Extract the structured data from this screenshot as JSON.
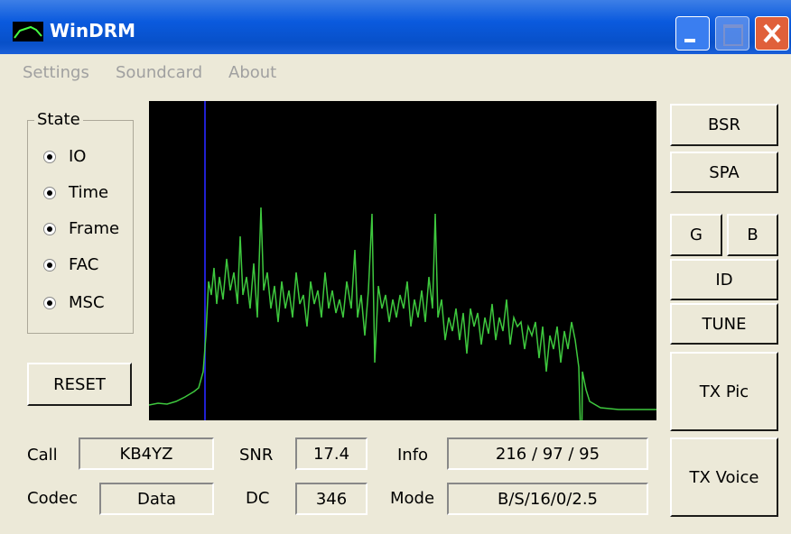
{
  "window": {
    "title": "WinDRM"
  },
  "menu": [
    "Settings",
    "Soundcard",
    "About"
  ],
  "state": {
    "label": "State",
    "options": [
      "IO",
      "Time",
      "Frame",
      "FAC",
      "MSC"
    ]
  },
  "buttons": {
    "reset": "RESET",
    "bsr": "BSR",
    "spa": "SPA",
    "g": "G",
    "b": "B",
    "id": "ID",
    "tune": "TUNE",
    "tx_pic": "TX Pic",
    "tx_voice": "TX Voice"
  },
  "fields": [
    {
      "label": "Call",
      "value": "KB4YZ"
    },
    {
      "label": "SNR",
      "value": "17.4"
    },
    {
      "label": "Info",
      "value": "216 / 97 / 95"
    },
    {
      "label": "Codec",
      "value": "Data"
    },
    {
      "label": "DC",
      "value": "346"
    },
    {
      "label": "Mode",
      "value": "B/S/16/0/2.5"
    }
  ]
}
